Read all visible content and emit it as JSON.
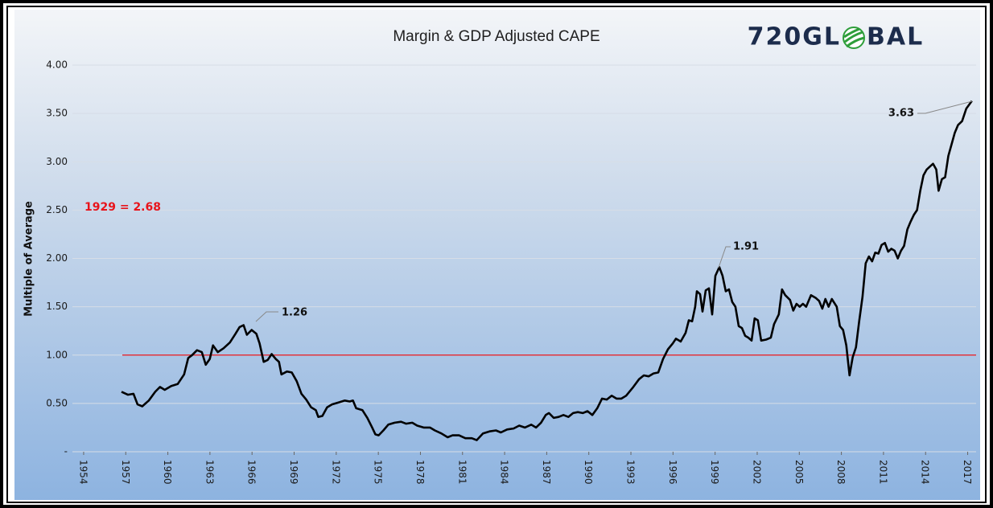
{
  "chart_data": {
    "type": "line",
    "title": "Margin & GDP Adjusted CAPE",
    "y_label": "Multiple of Average",
    "logo": {
      "left": "720GL",
      "right": "BAL"
    },
    "annotations": [
      "1929 = 2.68",
      "1.26",
      "1.91",
      "3.63"
    ],
    "reference_line": {
      "value": 1,
      "color": "#e8141b"
    },
    "color": "#000000",
    "grid": true,
    "xlim": [
      1953.2,
      2017.6
    ],
    "xticks": [
      1954,
      1957,
      1960,
      1963,
      1966,
      1969,
      1972,
      1975,
      1978,
      1981,
      1984,
      1987,
      1990,
      1993,
      1996,
      1999,
      2002,
      2005,
      2008,
      2011,
      2014,
      2017
    ],
    "ylim": [
      0,
      4
    ],
    "yticks": [
      {
        "value": 0,
        "label": "-"
      },
      {
        "value": 0.5,
        "label": "0.50"
      },
      {
        "value": 1,
        "label": "1.00"
      },
      {
        "value": 1.5,
        "label": "1.50"
      },
      {
        "value": 2,
        "label": "2.00"
      },
      {
        "value": 2.5,
        "label": "2.50"
      },
      {
        "value": 3,
        "label": "3.00"
      },
      {
        "value": 3.5,
        "label": "3.50"
      },
      {
        "value": 4,
        "label": "4.00"
      }
    ],
    "x": [
      1956.7,
      1957.15,
      1957.55,
      1957.84,
      1958.18,
      1958.64,
      1959.1,
      1959.44,
      1959.78,
      1960.24,
      1960.7,
      1961.16,
      1961.45,
      1961.73,
      1962.08,
      1962.42,
      1962.7,
      1962.99,
      1963.22,
      1963.56,
      1963.97,
      1964.42,
      1964.82,
      1965.11,
      1965.4,
      1965.63,
      1965.97,
      1966.31,
      1966.54,
      1966.83,
      1967.12,
      1967.4,
      1967.69,
      1967.92,
      1968.09,
      1968.49,
      1968.83,
      1969.18,
      1969.52,
      1969.86,
      1970.21,
      1970.55,
      1970.72,
      1971.01,
      1971.35,
      1971.7,
      1972.16,
      1972.61,
      1972.96,
      1973.19,
      1973.42,
      1973.87,
      1974.22,
      1974.56,
      1974.79,
      1975.02,
      1975.36,
      1975.71,
      1976.16,
      1976.62,
      1976.97,
      1977.42,
      1977.77,
      1978.23,
      1978.68,
      1979.03,
      1979.49,
      1979.94,
      1980.29,
      1980.75,
      1981.2,
      1981.66,
      1982.01,
      1982.46,
      1982.92,
      1983.38,
      1983.73,
      1984.18,
      1984.64,
      1985.04,
      1985.44,
      1985.9,
      1986.24,
      1986.59,
      1986.93,
      1987.16,
      1987.5,
      1987.85,
      1988.19,
      1988.54,
      1988.88,
      1989.22,
      1989.57,
      1989.91,
      1990.25,
      1990.6,
      1990.94,
      1991.28,
      1991.63,
      1991.97,
      1992.32,
      1992.66,
      1993.12,
      1993.58,
      1993.92,
      1994.26,
      1994.61,
      1994.95,
      1995.29,
      1995.64,
      1995.98,
      1996.21,
      1996.55,
      1996.9,
      1997.13,
      1997.36,
      1997.58,
      1997.7,
      1997.93,
      1998.1,
      1998.33,
      1998.56,
      1998.79,
      1999.02,
      1999.3,
      1999.53,
      1999.76,
      1999.99,
      2000.22,
      2000.45,
      2000.68,
      2000.91,
      2001.14,
      2001.37,
      2001.6,
      2001.82,
      2002.05,
      2002.28,
      2002.63,
      2002.97,
      2003.2,
      2003.54,
      2003.77,
      2004.0,
      2004.34,
      2004.57,
      2004.8,
      2005.03,
      2005.26,
      2005.49,
      2005.83,
      2006.18,
      2006.41,
      2006.64,
      2006.86,
      2007.09,
      2007.32,
      2007.67,
      2007.89,
      2008.12,
      2008.35,
      2008.58,
      2008.81,
      2009.04,
      2009.27,
      2009.5,
      2009.73,
      2009.96,
      2010.19,
      2010.41,
      2010.64,
      2010.87,
      2011.1,
      2011.33,
      2011.56,
      2011.79,
      2012.02,
      2012.25,
      2012.47,
      2012.7,
      2012.93,
      2013.16,
      2013.39,
      2013.62,
      2013.85,
      2014.08,
      2014.3,
      2014.53,
      2014.76,
      2014.93,
      2015.16,
      2015.39,
      2015.62,
      2015.85,
      2016.08,
      2016.31,
      2016.6,
      2016.9,
      2017.3
    ],
    "values": [
      0.62,
      0.59,
      0.6,
      0.49,
      0.47,
      0.53,
      0.62,
      0.67,
      0.64,
      0.68,
      0.7,
      0.8,
      0.97,
      1.0,
      1.05,
      1.03,
      0.9,
      0.96,
      1.1,
      1.03,
      1.07,
      1.13,
      1.22,
      1.29,
      1.31,
      1.21,
      1.26,
      1.22,
      1.12,
      0.93,
      0.95,
      1.01,
      0.96,
      0.93,
      0.8,
      0.83,
      0.82,
      0.73,
      0.6,
      0.54,
      0.46,
      0.43,
      0.36,
      0.37,
      0.46,
      0.49,
      0.51,
      0.53,
      0.52,
      0.53,
      0.45,
      0.43,
      0.35,
      0.25,
      0.18,
      0.17,
      0.22,
      0.28,
      0.3,
      0.31,
      0.29,
      0.3,
      0.27,
      0.25,
      0.25,
      0.22,
      0.19,
      0.15,
      0.17,
      0.17,
      0.14,
      0.14,
      0.12,
      0.19,
      0.21,
      0.22,
      0.2,
      0.23,
      0.24,
      0.27,
      0.25,
      0.28,
      0.25,
      0.3,
      0.38,
      0.4,
      0.35,
      0.36,
      0.38,
      0.36,
      0.4,
      0.41,
      0.4,
      0.42,
      0.38,
      0.45,
      0.55,
      0.54,
      0.58,
      0.55,
      0.55,
      0.58,
      0.66,
      0.75,
      0.79,
      0.78,
      0.81,
      0.82,
      0.96,
      1.06,
      1.12,
      1.17,
      1.14,
      1.23,
      1.36,
      1.35,
      1.5,
      1.66,
      1.63,
      1.45,
      1.67,
      1.69,
      1.42,
      1.82,
      1.91,
      1.82,
      1.66,
      1.68,
      1.55,
      1.5,
      1.3,
      1.28,
      1.2,
      1.18,
      1.15,
      1.38,
      1.36,
      1.15,
      1.16,
      1.18,
      1.32,
      1.42,
      1.68,
      1.62,
      1.57,
      1.46,
      1.53,
      1.5,
      1.53,
      1.5,
      1.62,
      1.59,
      1.56,
      1.48,
      1.58,
      1.5,
      1.58,
      1.5,
      1.3,
      1.26,
      1.1,
      0.79,
      0.98,
      1.08,
      1.35,
      1.6,
      1.95,
      2.02,
      1.97,
      2.06,
      2.05,
      2.14,
      2.16,
      2.07,
      2.1,
      2.08,
      2.0,
      2.08,
      2.13,
      2.3,
      2.38,
      2.45,
      2.5,
      2.7,
      2.86,
      2.92,
      2.95,
      2.98,
      2.92,
      2.7,
      2.82,
      2.84,
      3.06,
      3.18,
      3.3,
      3.38,
      3.42,
      3.55,
      3.63
    ]
  }
}
